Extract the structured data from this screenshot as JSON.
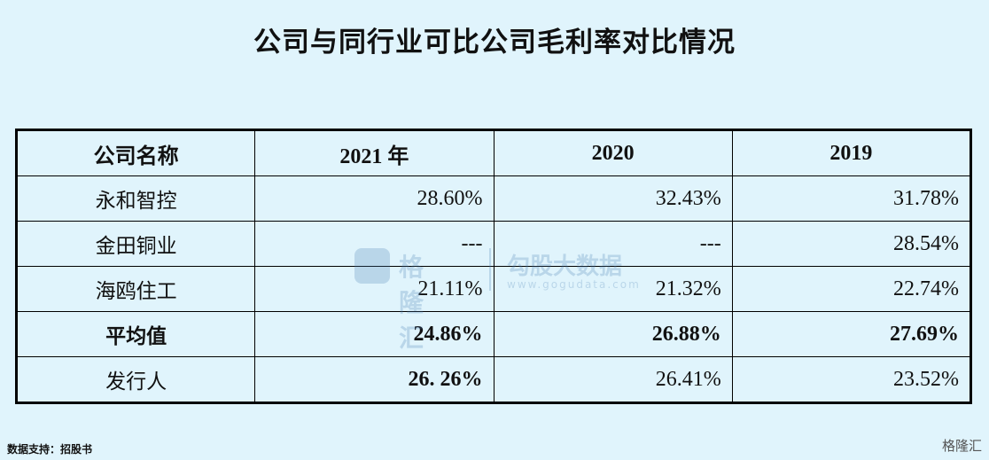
{
  "header": {
    "title": "公司与同行业可比公司毛利率对比情况"
  },
  "table": {
    "headers": [
      "公司名称",
      "2021 年",
      "2020",
      "2019"
    ],
    "rows": [
      [
        "永和智控",
        "28.60%",
        "32.43%",
        "31.78%"
      ],
      [
        "金田铜业",
        "---",
        "---",
        "28.54%"
      ],
      [
        "海鸥住工",
        "21.11%",
        "21.32%",
        "22.74%"
      ],
      [
        "平均值",
        "24.86%",
        "26.88%",
        "27.69%"
      ],
      [
        "发行人",
        "26. 26%",
        "26.41%",
        "23.52%"
      ]
    ]
  },
  "watermark": {
    "brand": "格隆汇",
    "product": "勾股大数据",
    "url": "www.gogudata.com"
  },
  "footer": {
    "source": "数据支持：招股书",
    "logo": "格隆汇"
  }
}
